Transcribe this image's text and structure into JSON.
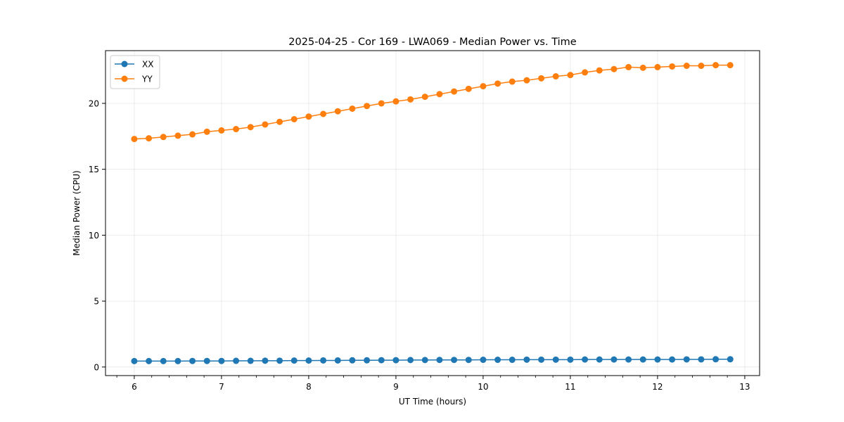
{
  "chart_data": {
    "type": "line",
    "title": "2025-04-25 - Cor 169 - LWA069 - Median Power vs. Time",
    "xlabel": "UT Time (hours)",
    "ylabel": "Median Power (CPU)",
    "xlim": [
      5.67,
      13.17
    ],
    "ylim": [
      -0.65,
      24.0
    ],
    "xticks": [
      6,
      7,
      8,
      9,
      10,
      11,
      12,
      13
    ],
    "xtick_labels": [
      "6",
      "7",
      "8",
      "9",
      "10",
      "11",
      "12",
      "13"
    ],
    "yticks": [
      0,
      5,
      10,
      15,
      20
    ],
    "ytick_labels": [
      "0",
      "5",
      "10",
      "15",
      "20"
    ],
    "grid": true,
    "legend": "top-left",
    "x": [
      6.0,
      6.1667,
      6.3333,
      6.5,
      6.6667,
      6.8333,
      7.0,
      7.1667,
      7.3333,
      7.5,
      7.6667,
      7.8333,
      8.0,
      8.1667,
      8.3333,
      8.5,
      8.6667,
      8.8333,
      9.0,
      9.1667,
      9.3333,
      9.5,
      9.6667,
      9.8333,
      10.0,
      10.1667,
      10.3333,
      10.5,
      10.6667,
      10.8333,
      11.0,
      11.1667,
      11.3333,
      11.5,
      11.6667,
      11.8333,
      12.0,
      12.1667,
      12.3333,
      12.5,
      12.6667,
      12.8333
    ],
    "series": [
      {
        "name": "XX",
        "color": "#1f77b4",
        "values": [
          0.45,
          0.45,
          0.45,
          0.45,
          0.46,
          0.46,
          0.46,
          0.47,
          0.47,
          0.48,
          0.48,
          0.49,
          0.49,
          0.5,
          0.5,
          0.51,
          0.51,
          0.52,
          0.52,
          0.53,
          0.53,
          0.54,
          0.54,
          0.54,
          0.55,
          0.55,
          0.55,
          0.56,
          0.56,
          0.56,
          0.56,
          0.57,
          0.57,
          0.57,
          0.57,
          0.57,
          0.57,
          0.57,
          0.58,
          0.58,
          0.59,
          0.59
        ]
      },
      {
        "name": "YY",
        "color": "#ff7f0e",
        "values": [
          17.3,
          17.35,
          17.45,
          17.55,
          17.65,
          17.85,
          17.95,
          18.05,
          18.2,
          18.4,
          18.6,
          18.8,
          19.0,
          19.2,
          19.4,
          19.6,
          19.8,
          20.0,
          20.15,
          20.3,
          20.5,
          20.7,
          20.9,
          21.1,
          21.3,
          21.5,
          21.65,
          21.75,
          21.9,
          22.05,
          22.15,
          22.35,
          22.5,
          22.6,
          22.75,
          22.7,
          22.75,
          22.8,
          22.85,
          22.85,
          22.9,
          22.9
        ]
      }
    ]
  }
}
